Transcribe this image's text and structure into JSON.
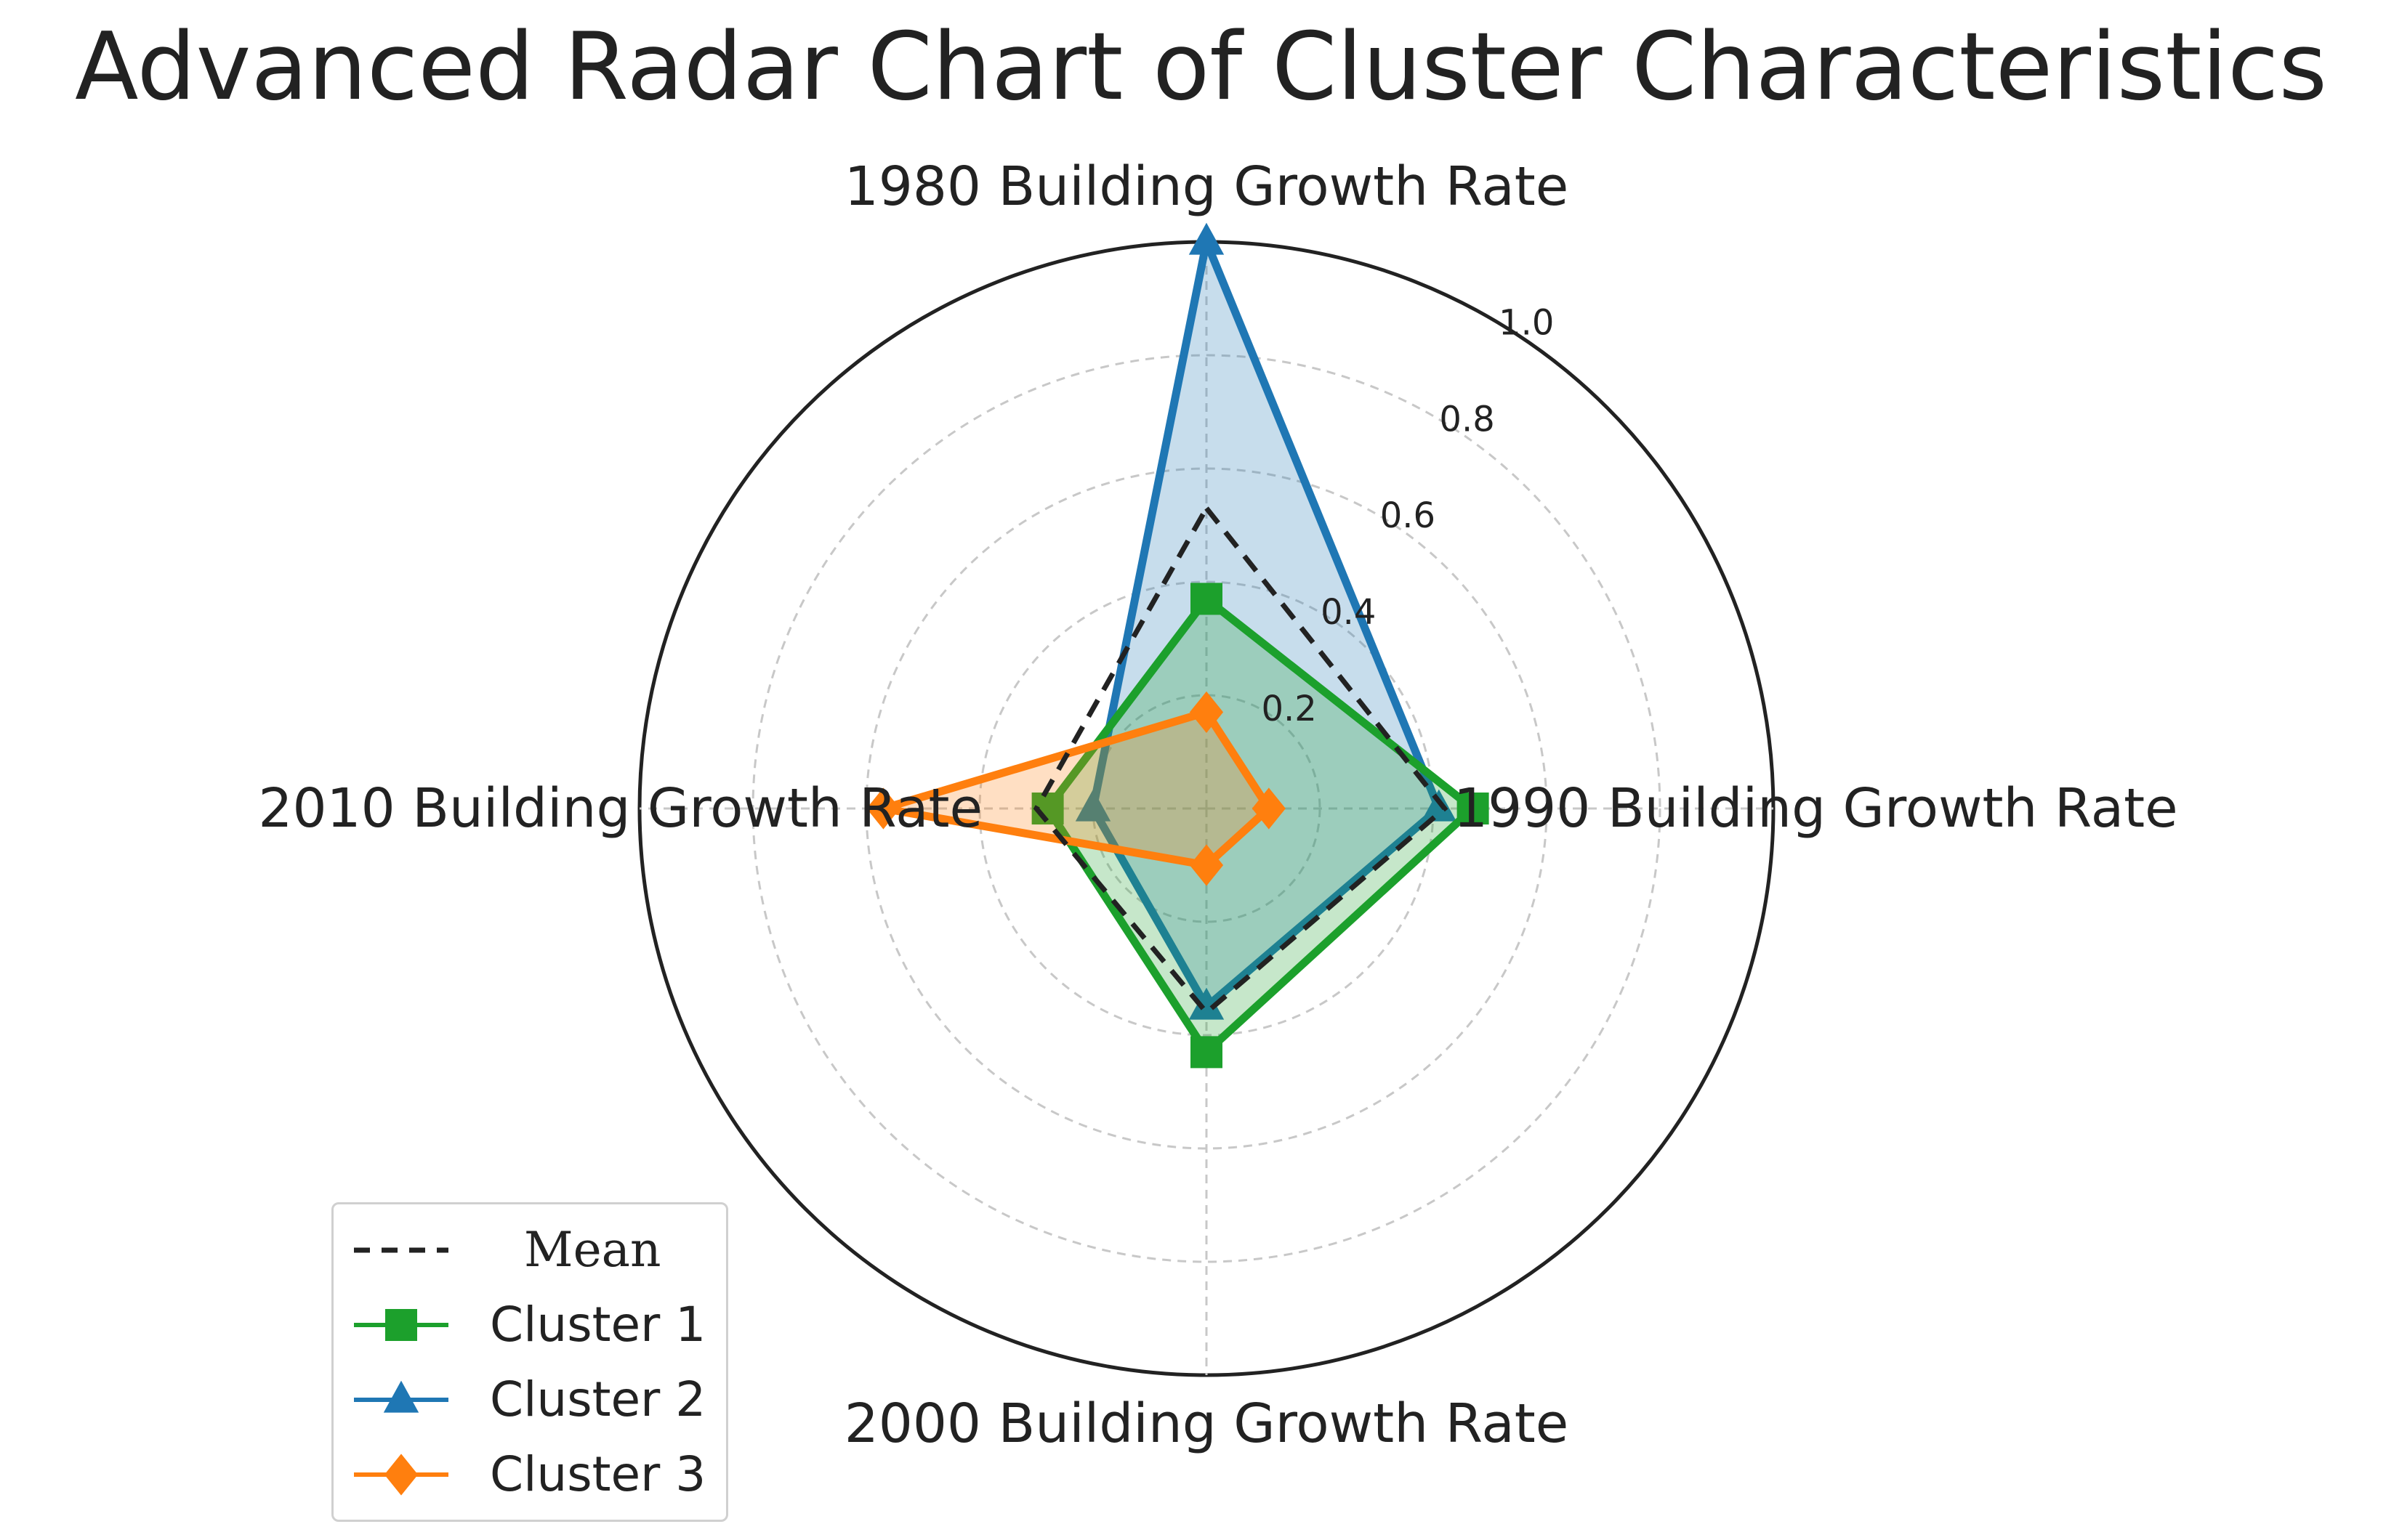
{
  "chart_data": {
    "type": "radar",
    "title": "Advanced Radar Chart of Cluster Characteristics",
    "axes": [
      "1980 Building Growth Rate",
      "1990 Building Growth Rate",
      "2000 Building Growth Rate",
      "2010 Building Growth Rate"
    ],
    "rlim": [
      0,
      1.0
    ],
    "rticks": [
      "0.2",
      "0.4",
      "0.6",
      "0.8",
      "1.0"
    ],
    "grid": true,
    "legend_position": "bottom-left",
    "series": [
      {
        "name": "Mean",
        "values": [
          0.53,
          0.42,
          0.36,
          0.3
        ],
        "color": "#222222",
        "style": "dashed",
        "marker": "none",
        "fill": false
      },
      {
        "name": "Cluster 1",
        "values": [
          0.37,
          0.47,
          0.43,
          0.28
        ],
        "color": "#1ca02c",
        "style": "solid",
        "marker": "square",
        "fill": true
      },
      {
        "name": "Cluster 2",
        "values": [
          1.0,
          0.41,
          0.35,
          0.2
        ],
        "color": "#1f77b4",
        "style": "solid",
        "marker": "triangle",
        "fill": true
      },
      {
        "name": "Cluster 3",
        "values": [
          0.17,
          0.11,
          0.1,
          0.57
        ],
        "color": "#ff7f0e",
        "style": "solid",
        "marker": "diamond",
        "fill": true
      }
    ]
  }
}
